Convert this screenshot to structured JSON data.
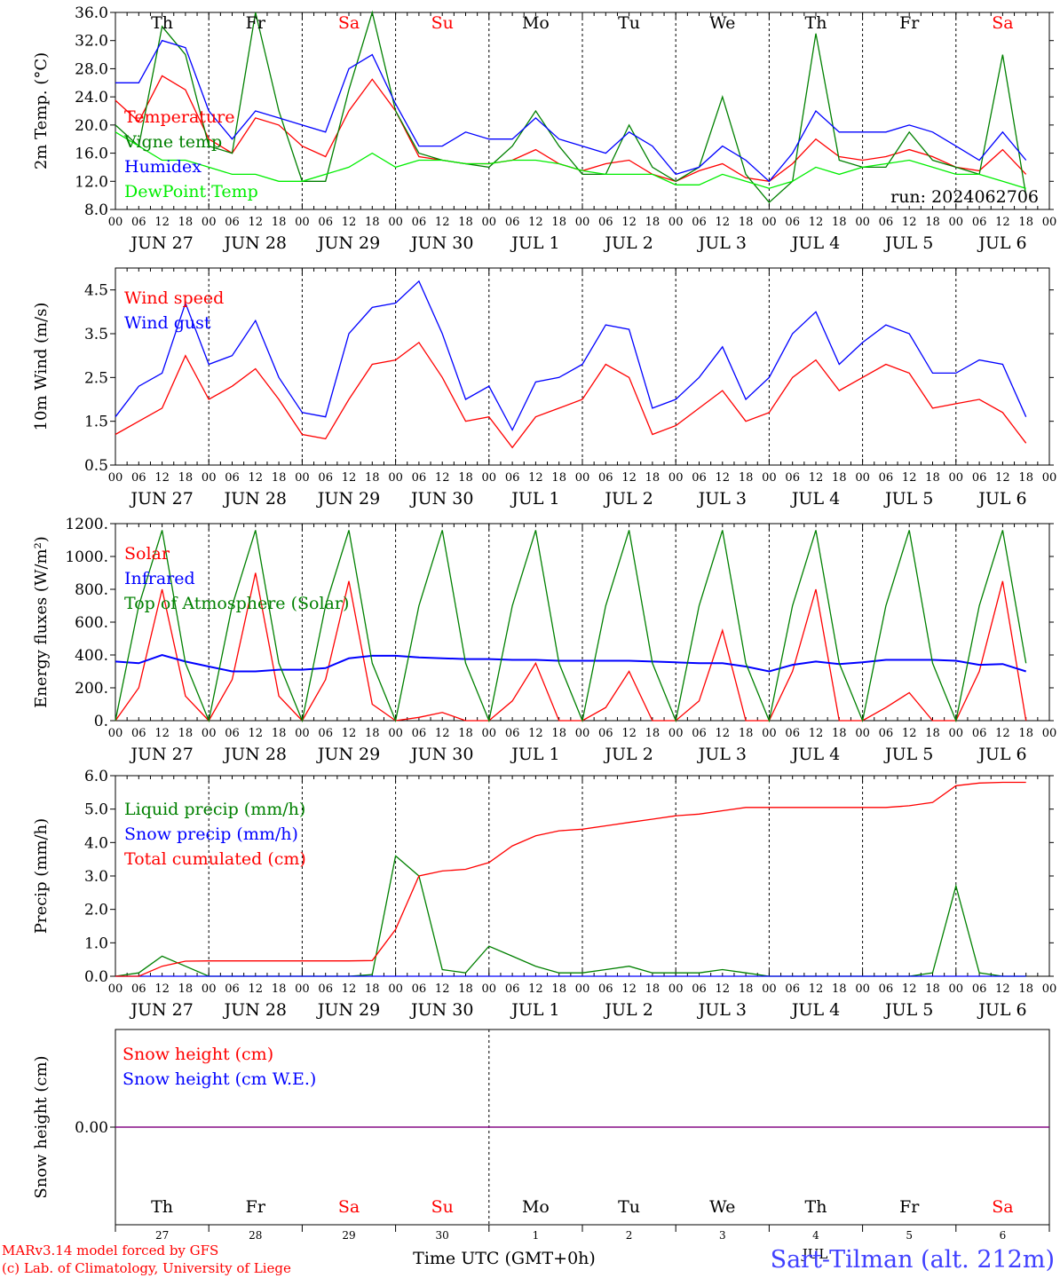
{
  "run_label": "run: 2024062706",
  "footer": {
    "credit1": "MARv3.14 model forced by GFS",
    "credit2": "(c) Lab. of Climatology, University of Liege",
    "xaxis_title": "Time UTC (GMT+0h)",
    "month_label": "JUL",
    "station": "Sart-Tilman (alt. 212m)"
  },
  "colors": {
    "red": "#ff0000",
    "blue": "#0000ff",
    "green": "#008000",
    "lightgreen": "#00ee00",
    "purple": "#800080"
  },
  "days": [
    {
      "dow": "Th",
      "weekend": false,
      "date": "JUN 27",
      "num": "27"
    },
    {
      "dow": "Fr",
      "weekend": false,
      "date": "JUN 28",
      "num": "28"
    },
    {
      "dow": "Sa",
      "weekend": true,
      "date": "JUN 29",
      "num": "29"
    },
    {
      "dow": "Su",
      "weekend": true,
      "date": "JUN 30",
      "num": "30"
    },
    {
      "dow": "Mo",
      "weekend": false,
      "date": "JUL 1",
      "num": "1"
    },
    {
      "dow": "Tu",
      "weekend": false,
      "date": "JUL 2",
      "num": "2"
    },
    {
      "dow": "We",
      "weekend": false,
      "date": "JUL 3",
      "num": "3"
    },
    {
      "dow": "Th",
      "weekend": false,
      "date": "JUL 4",
      "num": "4"
    },
    {
      "dow": "Fr",
      "weekend": false,
      "date": "JUL 5",
      "num": "5"
    },
    {
      "dow": "Sa",
      "weekend": true,
      "date": "JUL 6",
      "num": "6"
    }
  ],
  "hour_labels": [
    "00",
    "06",
    "12",
    "18"
  ],
  "chart_data": [
    {
      "type": "line",
      "ylabel": "2m Temp. (°C)",
      "ylim": [
        8,
        36
      ],
      "yticks": [
        "8.0",
        "12.0",
        "16.0",
        "20.0",
        "24.0",
        "28.0",
        "32.0",
        "36.0"
      ],
      "show_dow": true,
      "x_hours": [
        0,
        6,
        12,
        18,
        24,
        30,
        36,
        42,
        48,
        54,
        60,
        66,
        72,
        78,
        84,
        90,
        96,
        102,
        108,
        114,
        120,
        126,
        132,
        138,
        144,
        150,
        156,
        162,
        168,
        174,
        180,
        186,
        192,
        198,
        204,
        210,
        216,
        222,
        228,
        234
      ],
      "series": [
        {
          "name": "Temperature",
          "color": "red",
          "values": [
            23.5,
            20.5,
            27,
            25,
            18,
            16,
            21,
            20,
            17,
            15.5,
            22,
            26.5,
            22,
            15.5,
            15,
            14.5,
            14.5,
            15,
            16.5,
            14.5,
            13.5,
            14.5,
            15,
            13,
            12,
            13.5,
            14.5,
            12.5,
            12,
            14.5,
            18,
            15.5,
            15,
            15.5,
            16.5,
            15.5,
            14,
            13.5,
            16.5,
            13
          ]
        },
        {
          "name": "Vigne temp",
          "color": "green",
          "values": [
            20,
            17,
            34,
            30,
            17,
            16,
            36,
            22,
            12,
            12,
            25,
            36,
            22,
            16,
            15,
            14.5,
            14,
            17,
            22,
            17,
            13,
            13,
            20,
            14,
            12,
            14,
            24,
            13,
            9,
            12,
            33,
            15,
            14,
            14,
            19,
            15,
            14,
            13,
            30,
            10
          ]
        },
        {
          "name": "Humidex",
          "color": "blue",
          "values": [
            26,
            26,
            32,
            31,
            22,
            18,
            22,
            21,
            20,
            19,
            28,
            30,
            23,
            17,
            17,
            19,
            18,
            18,
            21,
            18,
            17,
            16,
            19,
            17,
            13,
            14,
            17,
            15,
            12,
            16,
            22,
            19,
            19,
            19,
            20,
            19,
            17,
            15,
            19,
            15
          ]
        },
        {
          "name": "DewPoint Temp",
          "color": "lightgreen",
          "values": [
            19,
            17,
            15,
            15,
            14,
            13,
            13,
            12,
            12,
            13,
            14,
            16,
            14,
            15,
            15,
            14.5,
            14.5,
            15,
            15,
            14.5,
            13.5,
            13,
            13,
            13,
            11.5,
            11.5,
            13,
            12,
            11,
            12,
            14,
            13,
            14,
            14.5,
            15,
            14,
            13,
            13,
            12,
            11
          ]
        }
      ]
    },
    {
      "type": "line",
      "ylabel": "10m Wind (m/s)",
      "ylim": [
        0.5,
        5.0
      ],
      "yticks": [
        "0.5",
        "1.5",
        "2.5",
        "3.5",
        "4.5"
      ],
      "show_dow": false,
      "x_hours": [
        0,
        6,
        12,
        18,
        24,
        30,
        36,
        42,
        48,
        54,
        60,
        66,
        72,
        78,
        84,
        90,
        96,
        102,
        108,
        114,
        120,
        126,
        132,
        138,
        144,
        150,
        156,
        162,
        168,
        174,
        180,
        186,
        192,
        198,
        204,
        210,
        216,
        222,
        228,
        234
      ],
      "series": [
        {
          "name": "Wind speed",
          "color": "red",
          "values": [
            1.2,
            1.5,
            1.8,
            3.0,
            2.0,
            2.3,
            2.7,
            2.0,
            1.2,
            1.1,
            2.0,
            2.8,
            2.9,
            3.3,
            2.5,
            1.5,
            1.6,
            0.9,
            1.6,
            1.8,
            2.0,
            2.8,
            2.5,
            1.2,
            1.4,
            1.8,
            2.2,
            1.5,
            1.7,
            2.5,
            2.9,
            2.2,
            2.5,
            2.8,
            2.6,
            1.8,
            1.9,
            2.0,
            1.7,
            1.0
          ]
        },
        {
          "name": "Wind gust",
          "color": "blue",
          "values": [
            1.6,
            2.3,
            2.6,
            4.2,
            2.8,
            3.0,
            3.8,
            2.5,
            1.7,
            1.6,
            3.5,
            4.1,
            4.2,
            4.7,
            3.5,
            2.0,
            2.3,
            1.3,
            2.4,
            2.5,
            2.8,
            3.7,
            3.6,
            1.8,
            2.0,
            2.5,
            3.2,
            2.0,
            2.5,
            3.5,
            4.0,
            2.8,
            3.3,
            3.7,
            3.5,
            2.6,
            2.6,
            2.9,
            2.8,
            1.6
          ]
        }
      ]
    },
    {
      "type": "line",
      "ylabel": "Energy fluxes (W/m²)",
      "ylim": [
        0,
        1200
      ],
      "yticks": [
        "0.",
        "200.",
        "400.",
        "600.",
        "800.",
        "1000.",
        "1200."
      ],
      "show_dow": false,
      "x_hours": [
        0,
        6,
        12,
        18,
        24,
        30,
        36,
        42,
        48,
        54,
        60,
        66,
        72,
        78,
        84,
        90,
        96,
        102,
        108,
        114,
        120,
        126,
        132,
        138,
        144,
        150,
        156,
        162,
        168,
        174,
        180,
        186,
        192,
        198,
        204,
        210,
        216,
        222,
        228,
        234
      ],
      "series": [
        {
          "name": "Solar",
          "color": "red",
          "values": [
            0,
            200,
            800,
            150,
            0,
            250,
            900,
            150,
            0,
            250,
            850,
            100,
            0,
            20,
            50,
            0,
            0,
            120,
            350,
            0,
            0,
            80,
            300,
            0,
            0,
            120,
            550,
            0,
            0,
            300,
            800,
            0,
            0,
            80,
            170,
            0,
            0,
            300,
            850,
            0
          ]
        },
        {
          "name": "Infrared",
          "color": "blue",
          "values": [
            360,
            350,
            400,
            360,
            330,
            300,
            300,
            310,
            310,
            320,
            380,
            395,
            395,
            385,
            380,
            375,
            375,
            370,
            370,
            365,
            365,
            365,
            365,
            360,
            355,
            350,
            350,
            330,
            300,
            340,
            360,
            345,
            355,
            370,
            370,
            370,
            365,
            340,
            345,
            300
          ]
        },
        {
          "name": "Top of Atmosphere (Solar)",
          "color": "green",
          "values": [
            0,
            700,
            1160,
            350,
            0,
            700,
            1160,
            350,
            0,
            700,
            1160,
            350,
            0,
            700,
            1160,
            350,
            0,
            700,
            1160,
            350,
            0,
            700,
            1160,
            350,
            0,
            700,
            1160,
            350,
            0,
            700,
            1160,
            350,
            0,
            700,
            1160,
            350,
            0,
            700,
            1160,
            350
          ]
        }
      ]
    },
    {
      "type": "line",
      "ylabel": "Precip (mm/h)",
      "ylim": [
        0,
        6
      ],
      "yticks": [
        "0.0",
        "1.0",
        "2.0",
        "3.0",
        "4.0",
        "5.0",
        "6.0"
      ],
      "show_dow": false,
      "x_hours": [
        0,
        6,
        12,
        18,
        24,
        30,
        36,
        42,
        48,
        54,
        60,
        66,
        72,
        78,
        84,
        90,
        96,
        102,
        108,
        114,
        120,
        126,
        132,
        138,
        144,
        150,
        156,
        162,
        168,
        174,
        180,
        186,
        192,
        198,
        204,
        210,
        216,
        222,
        228,
        234
      ],
      "series": [
        {
          "name": "Liquid precip (mm/h)",
          "color": "green",
          "values": [
            0,
            0.1,
            0.6,
            0.3,
            0,
            0,
            0,
            0,
            0,
            0,
            0,
            0.05,
            3.6,
            3.0,
            0.2,
            0.1,
            0.9,
            0.6,
            0.3,
            0.1,
            0.1,
            0.2,
            0.3,
            0.1,
            0.1,
            0.1,
            0.2,
            0.1,
            0,
            0,
            0,
            0,
            0,
            0,
            0,
            0.1,
            2.7,
            0.1,
            0,
            0
          ]
        },
        {
          "name": "Snow precip (mm/h)",
          "color": "blue",
          "values": [
            0,
            0,
            0,
            0,
            0,
            0,
            0,
            0,
            0,
            0,
            0,
            0,
            0,
            0,
            0,
            0,
            0,
            0,
            0,
            0,
            0,
            0,
            0,
            0,
            0,
            0,
            0,
            0,
            0,
            0,
            0,
            0,
            0,
            0,
            0,
            0,
            0,
            0,
            0,
            0
          ]
        },
        {
          "name": "Total cumulated (cm)",
          "color": "red",
          "values": [
            0,
            0,
            0.3,
            0.45,
            0.46,
            0.46,
            0.46,
            0.46,
            0.46,
            0.46,
            0.46,
            0.47,
            1.4,
            3.0,
            3.15,
            3.2,
            3.4,
            3.9,
            4.2,
            4.35,
            4.4,
            4.5,
            4.6,
            4.7,
            4.8,
            4.85,
            4.95,
            5.05,
            5.05,
            5.05,
            5.05,
            5.05,
            5.05,
            5.05,
            5.1,
            5.2,
            5.7,
            5.78,
            5.8,
            5.8
          ]
        }
      ]
    },
    {
      "type": "line",
      "ylabel": "Snow height (cm)",
      "ylim": [
        -1,
        1
      ],
      "yticks": [
        "0.00"
      ],
      "show_dow": true,
      "x_hours": [
        0,
        240
      ],
      "series": [
        {
          "name": "Snow height (cm)",
          "color": "red",
          "values": [
            0,
            0
          ]
        },
        {
          "name": "Snow height (cm W.E.)",
          "color": "blue",
          "values": [
            0,
            0
          ]
        }
      ]
    }
  ]
}
